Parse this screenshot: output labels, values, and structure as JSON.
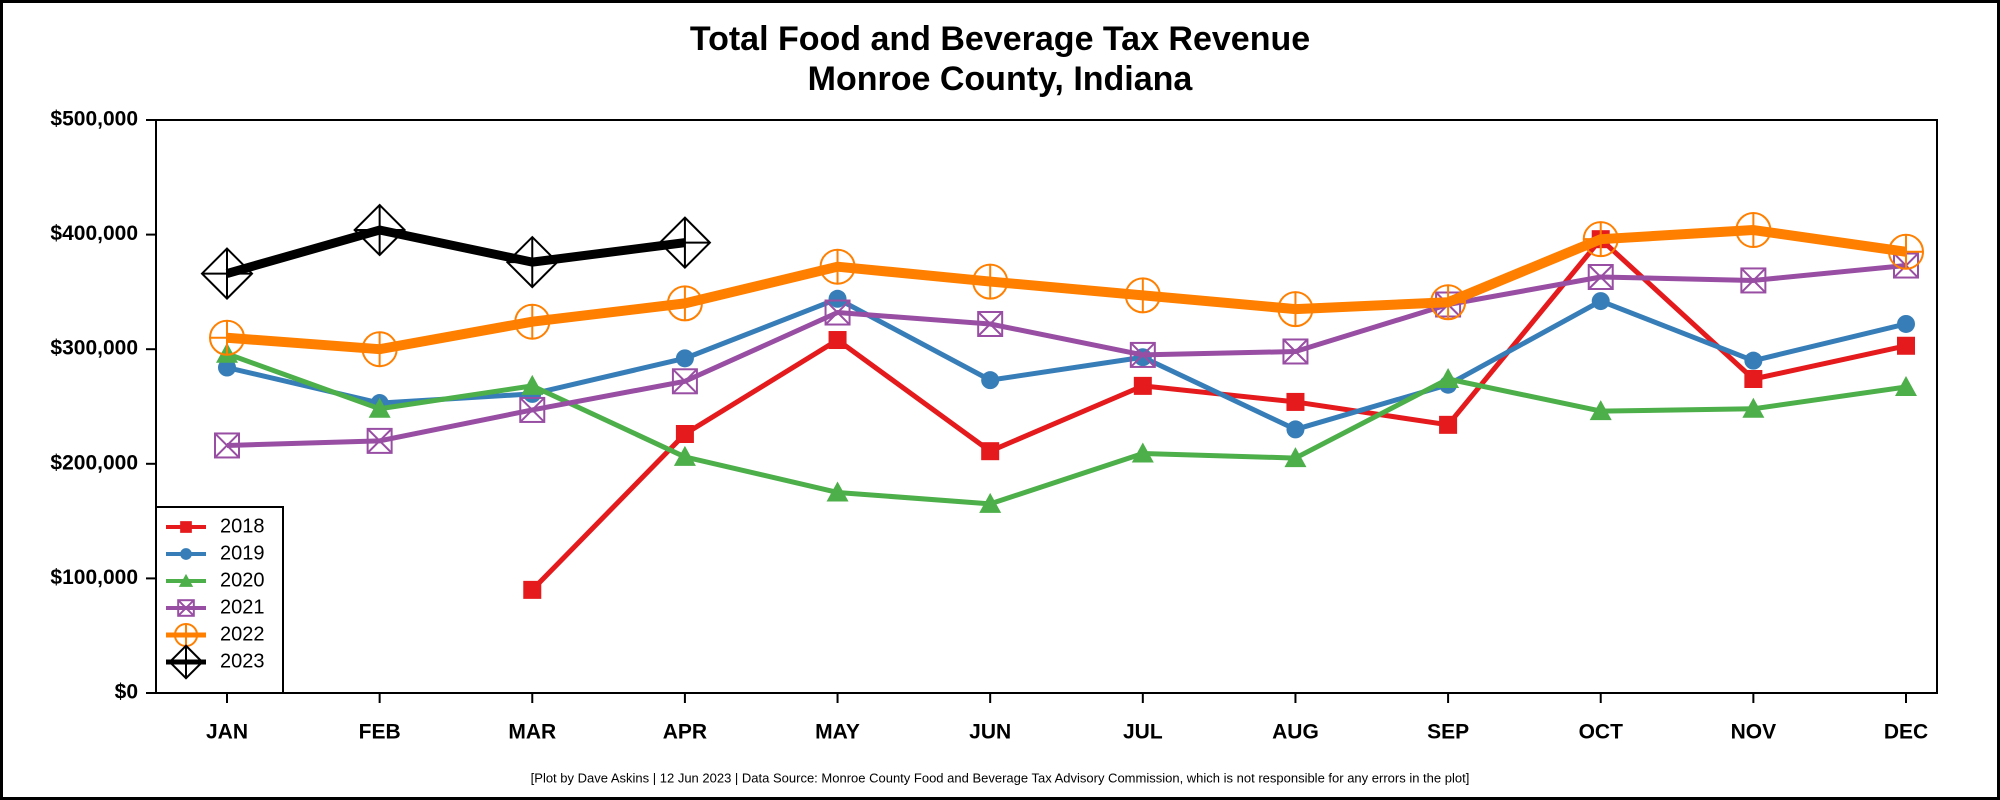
{
  "chart_data": {
    "type": "line",
    "title": "Total Food and Beverage Tax Revenue",
    "subtitle": "Monroe County, Indiana",
    "note": "[Plot by Dave Askins | 12 Jun 2023 | Data Source: Monroe County Food and Beverage Tax Advisory Commission, which is not responsible for any errors in the plot]",
    "categories": [
      "JAN",
      "FEB",
      "MAR",
      "APR",
      "MAY",
      "JUN",
      "JUL",
      "AUG",
      "SEP",
      "OCT",
      "NOV",
      "DEC"
    ],
    "ylim": [
      0,
      500000
    ],
    "yticks": [
      {
        "value": 0,
        "label": "$0"
      },
      {
        "value": 100000,
        "label": "$100,000"
      },
      {
        "value": 200000,
        "label": "$200,000"
      },
      {
        "value": 300000,
        "label": "$300,000"
      },
      {
        "value": 400000,
        "label": "$400,000"
      },
      {
        "value": 500000,
        "label": "$500,000"
      }
    ],
    "legend": "lower left",
    "series": [
      {
        "name": "2018",
        "color": "#e41a1c",
        "marker": "square",
        "values": [
          null,
          null,
          90000,
          226000,
          308000,
          211000,
          268000,
          254000,
          234000,
          396000,
          274000,
          303000
        ]
      },
      {
        "name": "2019",
        "color": "#377eb8",
        "marker": "circle",
        "values": [
          284000,
          253000,
          261000,
          292000,
          344000,
          273000,
          293000,
          230000,
          269000,
          342000,
          290000,
          322000
        ]
      },
      {
        "name": "2020",
        "color": "#4daf4a",
        "marker": "triangle",
        "values": [
          296000,
          248000,
          268000,
          206000,
          175000,
          165000,
          209000,
          205000,
          274000,
          246000,
          248000,
          267000
        ]
      },
      {
        "name": "2021",
        "color": "#984ea3",
        "marker": "square-x",
        "values": [
          216000,
          220000,
          247000,
          272000,
          332000,
          322000,
          295000,
          298000,
          339000,
          363000,
          360000,
          373000
        ]
      },
      {
        "name": "2022",
        "color": "#ff7f00",
        "marker": "circle-plus",
        "values": [
          310000,
          300000,
          324000,
          340000,
          372000,
          359000,
          347000,
          335000,
          341000,
          396000,
          404000,
          385000
        ]
      },
      {
        "name": "2023",
        "color": "#000000",
        "marker": "diamond-plus",
        "values": [
          366000,
          404000,
          376000,
          393000,
          null,
          null,
          null,
          null,
          null,
          null,
          null,
          null
        ]
      }
    ]
  }
}
